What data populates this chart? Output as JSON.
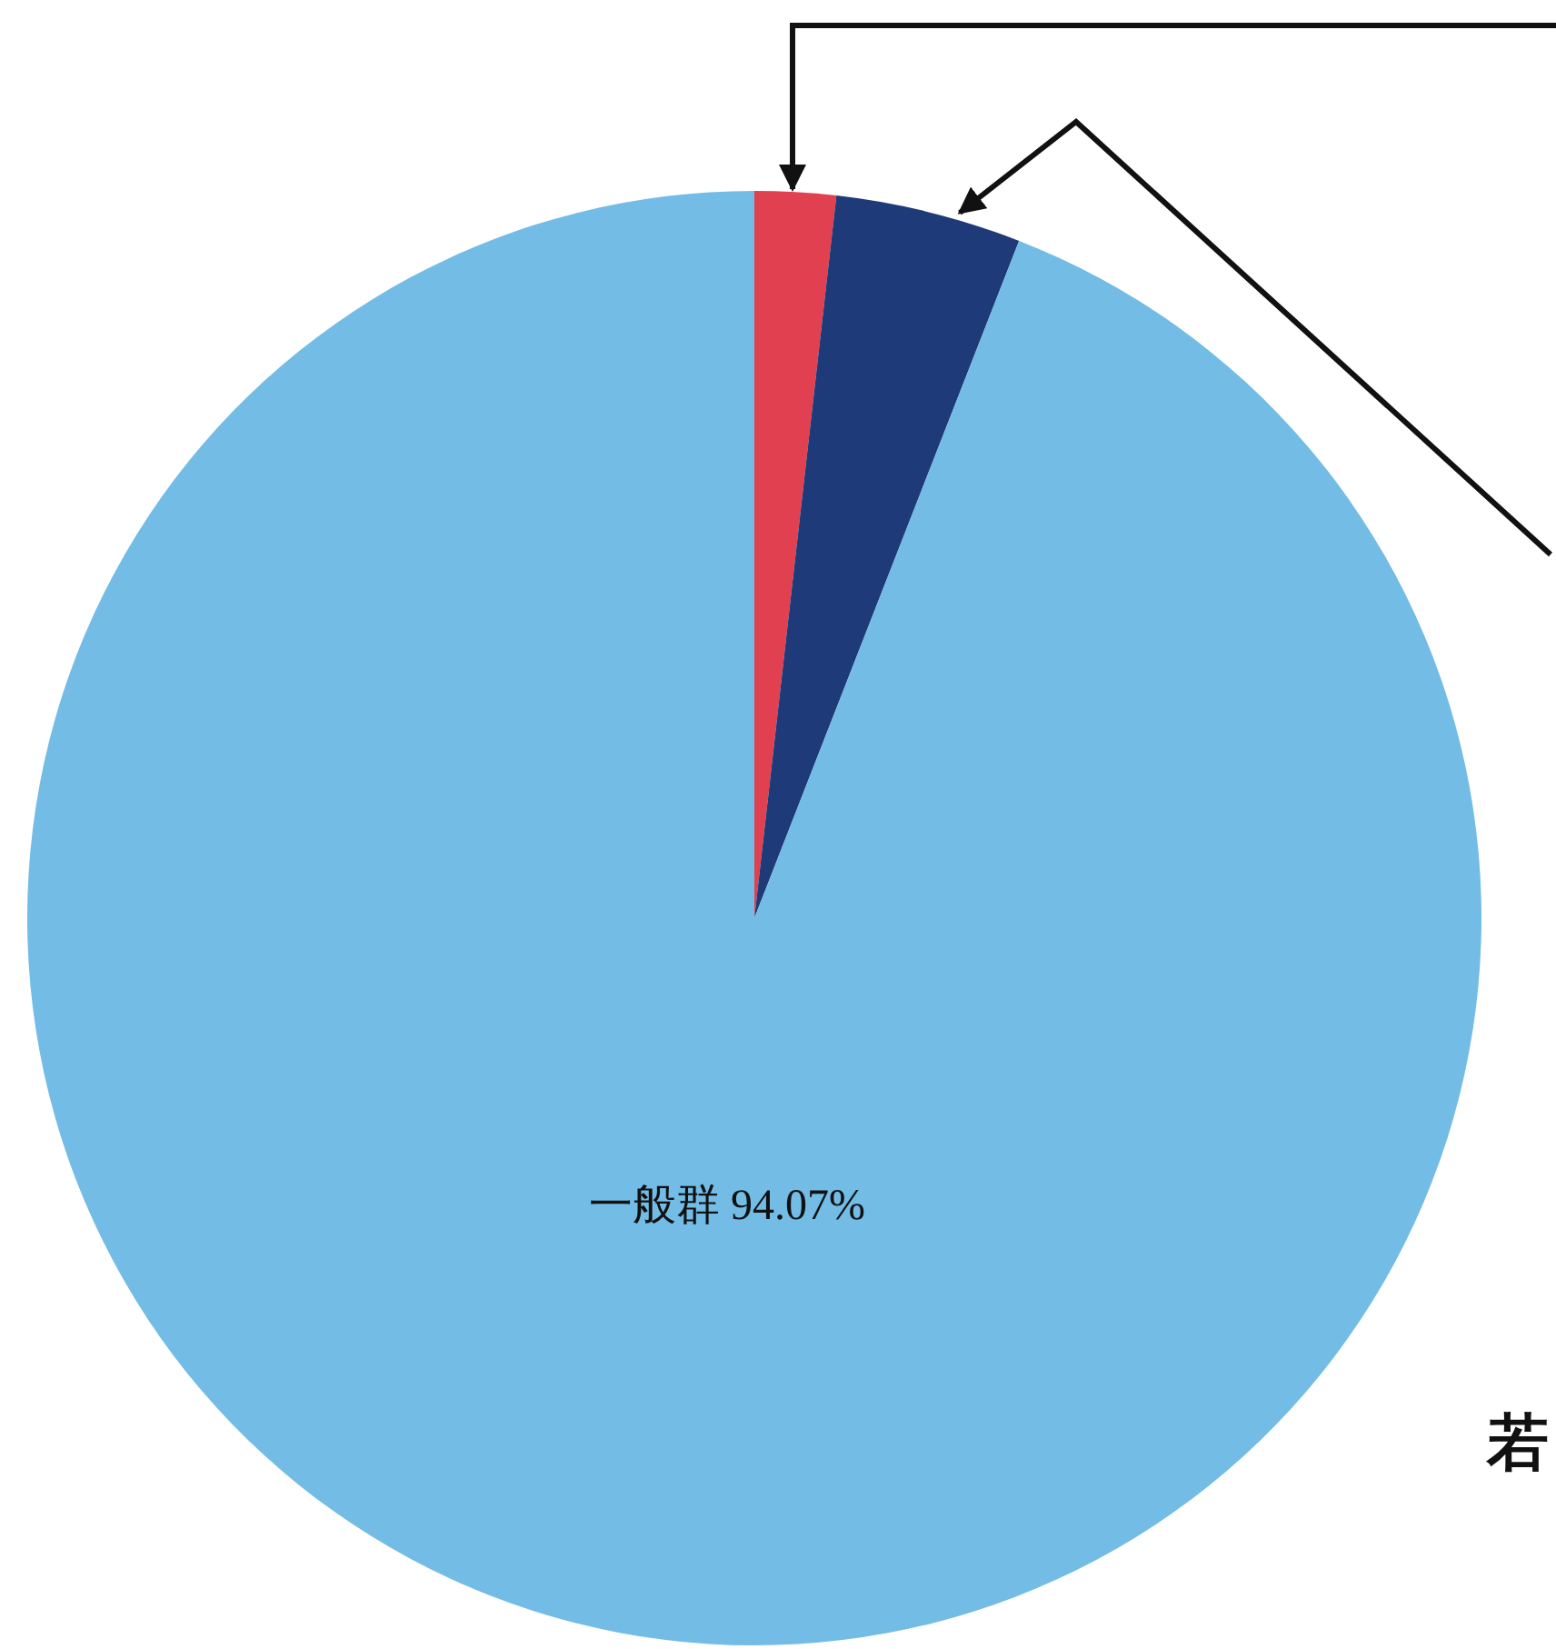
{
  "chart_data": {
    "type": "pie",
    "categories": [
      null,
      null,
      "一般群"
    ],
    "values": [
      1.8,
      4.13,
      94.07
    ],
    "colors": [
      "#e0404f",
      "#1f3a78",
      "#72bce6"
    ],
    "value_labels": [
      null,
      null,
      "94.07%"
    ],
    "annotations": [
      "若"
    ]
  }
}
